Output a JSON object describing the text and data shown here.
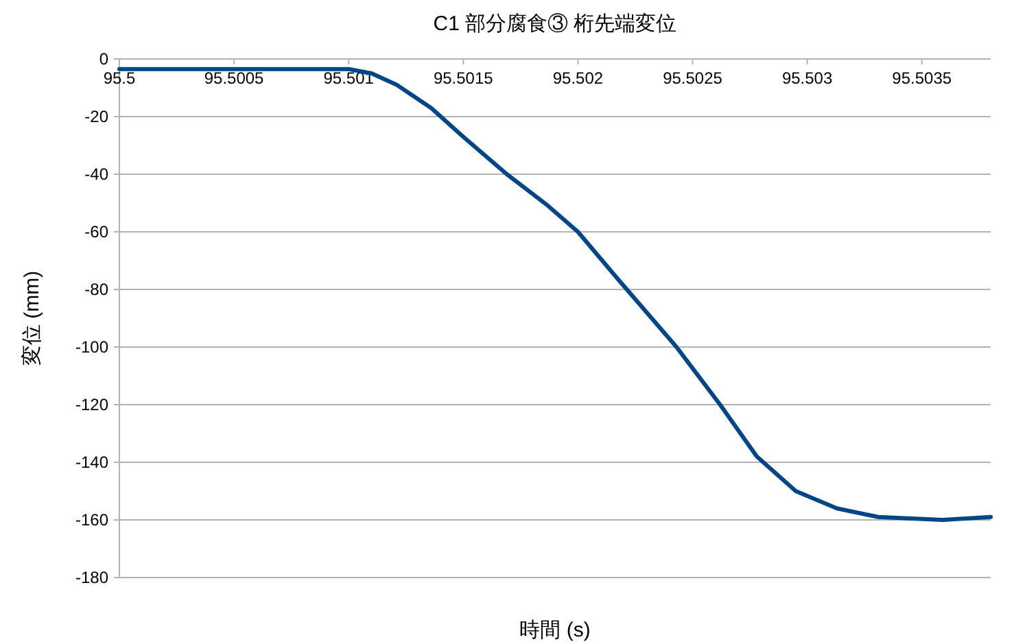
{
  "chart_data": {
    "type": "line",
    "title": "C1 部分腐食③ 桁先端変位",
    "xlabel": "時間 (s)",
    "ylabel": "変位 (mm)",
    "x": [
      95.5,
      95.501,
      95.5011,
      95.50121,
      95.50136,
      95.5015,
      95.50169,
      95.50187,
      95.502,
      95.50217,
      95.50243,
      95.50262,
      95.50278,
      95.50295,
      95.50313,
      95.50331,
      95.50359,
      95.5038
    ],
    "series": [
      {
        "color": "#004586",
        "values": [
          -3.5,
          -3.5,
          -5,
          -9,
          -17,
          -27,
          -40,
          -51,
          -60,
          -76,
          -100,
          -120,
          -138,
          -150,
          -156,
          -159,
          -160,
          -159
        ]
      }
    ],
    "xlim": [
      95.5,
      95.5038
    ],
    "ylim": [
      -180,
      0
    ],
    "xticks": [
      95.5,
      95.5005,
      95.501,
      95.5015,
      95.502,
      95.5025,
      95.503,
      95.5035
    ],
    "yticks": [
      -180,
      -160,
      -140,
      -120,
      -100,
      -80,
      -60,
      -40,
      -20,
      0
    ],
    "grid": "y",
    "marker": "none",
    "line_style": "solid"
  }
}
